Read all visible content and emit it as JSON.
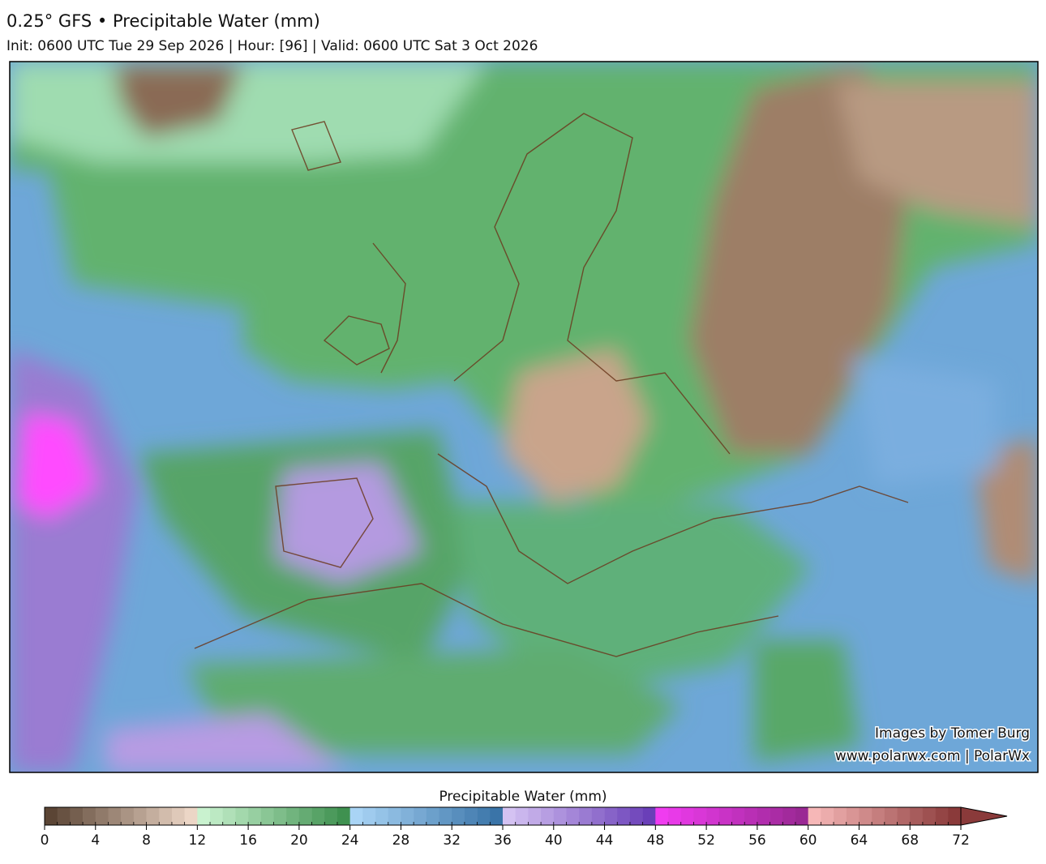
{
  "header": {
    "title": "0.25° GFS • Precipitable Water (mm)",
    "subtitle": "Init: 0600 UTC Tue 29 Sep 2026 | Hour: [96] | Valid: 0600 UTC Sat 3 Oct 2026"
  },
  "credits": [
    "Images by Tomer Burg",
    "www.polarwx.com | PolarWx"
  ],
  "colorbar": {
    "label": "Precipitable Water (mm)",
    "range": [
      0,
      72
    ],
    "ticks": [
      0,
      4,
      8,
      12,
      16,
      20,
      24,
      28,
      32,
      36,
      40,
      44,
      48,
      52,
      56,
      60,
      64,
      68,
      72
    ],
    "bands": [
      {
        "from": 0,
        "to": 12,
        "colors": [
          "#5b4535",
          "#ecd6c6"
        ]
      },
      {
        "from": 12,
        "to": 24,
        "colors": [
          "#c9f2cf",
          "#3f9150"
        ]
      },
      {
        "from": 24,
        "to": 36,
        "colors": [
          "#a9d4f5",
          "#3a74a8"
        ]
      },
      {
        "from": 36,
        "to": 48,
        "colors": [
          "#d4c2f2",
          "#6a3fb8"
        ]
      },
      {
        "from": 48,
        "to": 60,
        "colors": [
          "#f03cf0",
          "#9a2894"
        ]
      },
      {
        "from": 60,
        "to": 72,
        "colors": [
          "#f6b7b7",
          "#8a3a3a"
        ]
      }
    ]
  }
}
